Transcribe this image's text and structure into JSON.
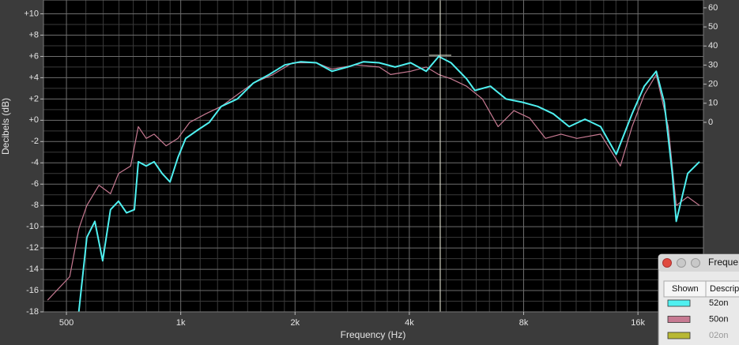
{
  "chart_data": {
    "type": "line",
    "xlabel": "Frequency (Hz)",
    "ylabel": "Decibels (dB)",
    "log_x": true,
    "grid": true,
    "xlim": [
      435,
      23800
    ],
    "ylim": [
      -18,
      11.3
    ],
    "y2lim": [
      -99.3,
      64.1
    ],
    "xticks": [
      500,
      {
        "value": 1000,
        "label": "1k"
      },
      {
        "value": 2000,
        "label": "2k"
      },
      {
        "value": 4000,
        "label": "4k"
      },
      {
        "value": 8000,
        "label": "8k"
      },
      {
        "value": 16000,
        "label": "16k"
      }
    ],
    "yticks": [
      {
        "value": 10,
        "label": "+10"
      },
      {
        "value": 8,
        "label": "+8"
      },
      {
        "value": 6,
        "label": "+6"
      },
      {
        "value": 4,
        "label": "+4"
      },
      {
        "value": 2,
        "label": "+2"
      },
      {
        "value": 0,
        "label": "+0"
      },
      -2,
      -4,
      -6,
      -8,
      -10,
      -12,
      -14,
      -16,
      -18
    ],
    "y2ticks": [
      0,
      10,
      20,
      30,
      40,
      50,
      60
    ],
    "series": [
      {
        "name": "52on",
        "color": "#4ff0f0",
        "x": [
          539,
          566,
          594,
          623,
          653,
          686,
          720,
          755,
          773,
          811,
          851,
          893,
          937,
          983,
          1031,
          1110,
          1189,
          1278,
          1409,
          1553,
          1710,
          1880,
          2069,
          2276,
          2500,
          2750,
          3030,
          3330,
          3670,
          4030,
          4430,
          4780,
          5150,
          5660,
          5950,
          6540,
          7190,
          7920,
          8710,
          9580,
          10540,
          11600,
          12760,
          14030,
          15440,
          16620,
          17880,
          18760,
          19700,
          20180,
          21630,
          23240
        ],
        "values": [
          -18,
          -11,
          -9.5,
          -13.2,
          -8.4,
          -7.6,
          -8.7,
          -8.4,
          -3.9,
          -4.3,
          -3.9,
          -5.0,
          -5.8,
          -3.5,
          -1.7,
          -0.9,
          -0.2,
          1.3,
          2.0,
          3.5,
          4.3,
          5.2,
          5.5,
          5.4,
          4.6,
          5.0,
          5.5,
          5.4,
          5.0,
          5.4,
          4.6,
          6.0,
          5.4,
          3.9,
          2.8,
          3.2,
          2.0,
          1.7,
          1.3,
          0.6,
          -0.6,
          0.1,
          -0.6,
          -3.2,
          0.6,
          3.2,
          4.6,
          1.7,
          -5.0,
          -9.5,
          -5.0,
          -3.9
        ]
      },
      {
        "name": "50on",
        "color": "#c77a92",
        "x": [
          446,
          510,
          539,
          566,
          609,
          653,
          686,
          738,
          773,
          811,
          851,
          915,
          983,
          1056,
          1163,
          1278,
          1409,
          1553,
          1750,
          1970,
          2276,
          2500,
          2890,
          3330,
          3570,
          4030,
          4430,
          4780,
          5150,
          5660,
          6230,
          6850,
          7540,
          8300,
          9130,
          10040,
          11050,
          12760,
          14380,
          15440,
          16620,
          17880,
          19230,
          20180,
          21630,
          23240
        ],
        "values": [
          -16.9,
          -14.7,
          -10.2,
          -8.0,
          -6.1,
          -6.9,
          -5.0,
          -4.3,
          -0.6,
          -1.7,
          -1.3,
          -2.4,
          -1.7,
          -0.2,
          0.6,
          1.3,
          2.4,
          3.5,
          4.3,
          5.4,
          5.4,
          4.8,
          5.2,
          5.0,
          4.3,
          4.6,
          5.0,
          4.3,
          3.9,
          3.2,
          2.0,
          -0.6,
          0.9,
          0.2,
          -1.7,
          -1.3,
          -1.7,
          -1.3,
          -4.3,
          -0.6,
          2.4,
          4.3,
          -0.6,
          -8.0,
          -7.2,
          -8.0
        ]
      }
    ],
    "hidden_series": [
      {
        "name": "02on",
        "color": "#b8b834"
      }
    ],
    "legend_window": {
      "title": "Freque",
      "columns": [
        "Shown",
        "Descrip"
      ]
    }
  }
}
